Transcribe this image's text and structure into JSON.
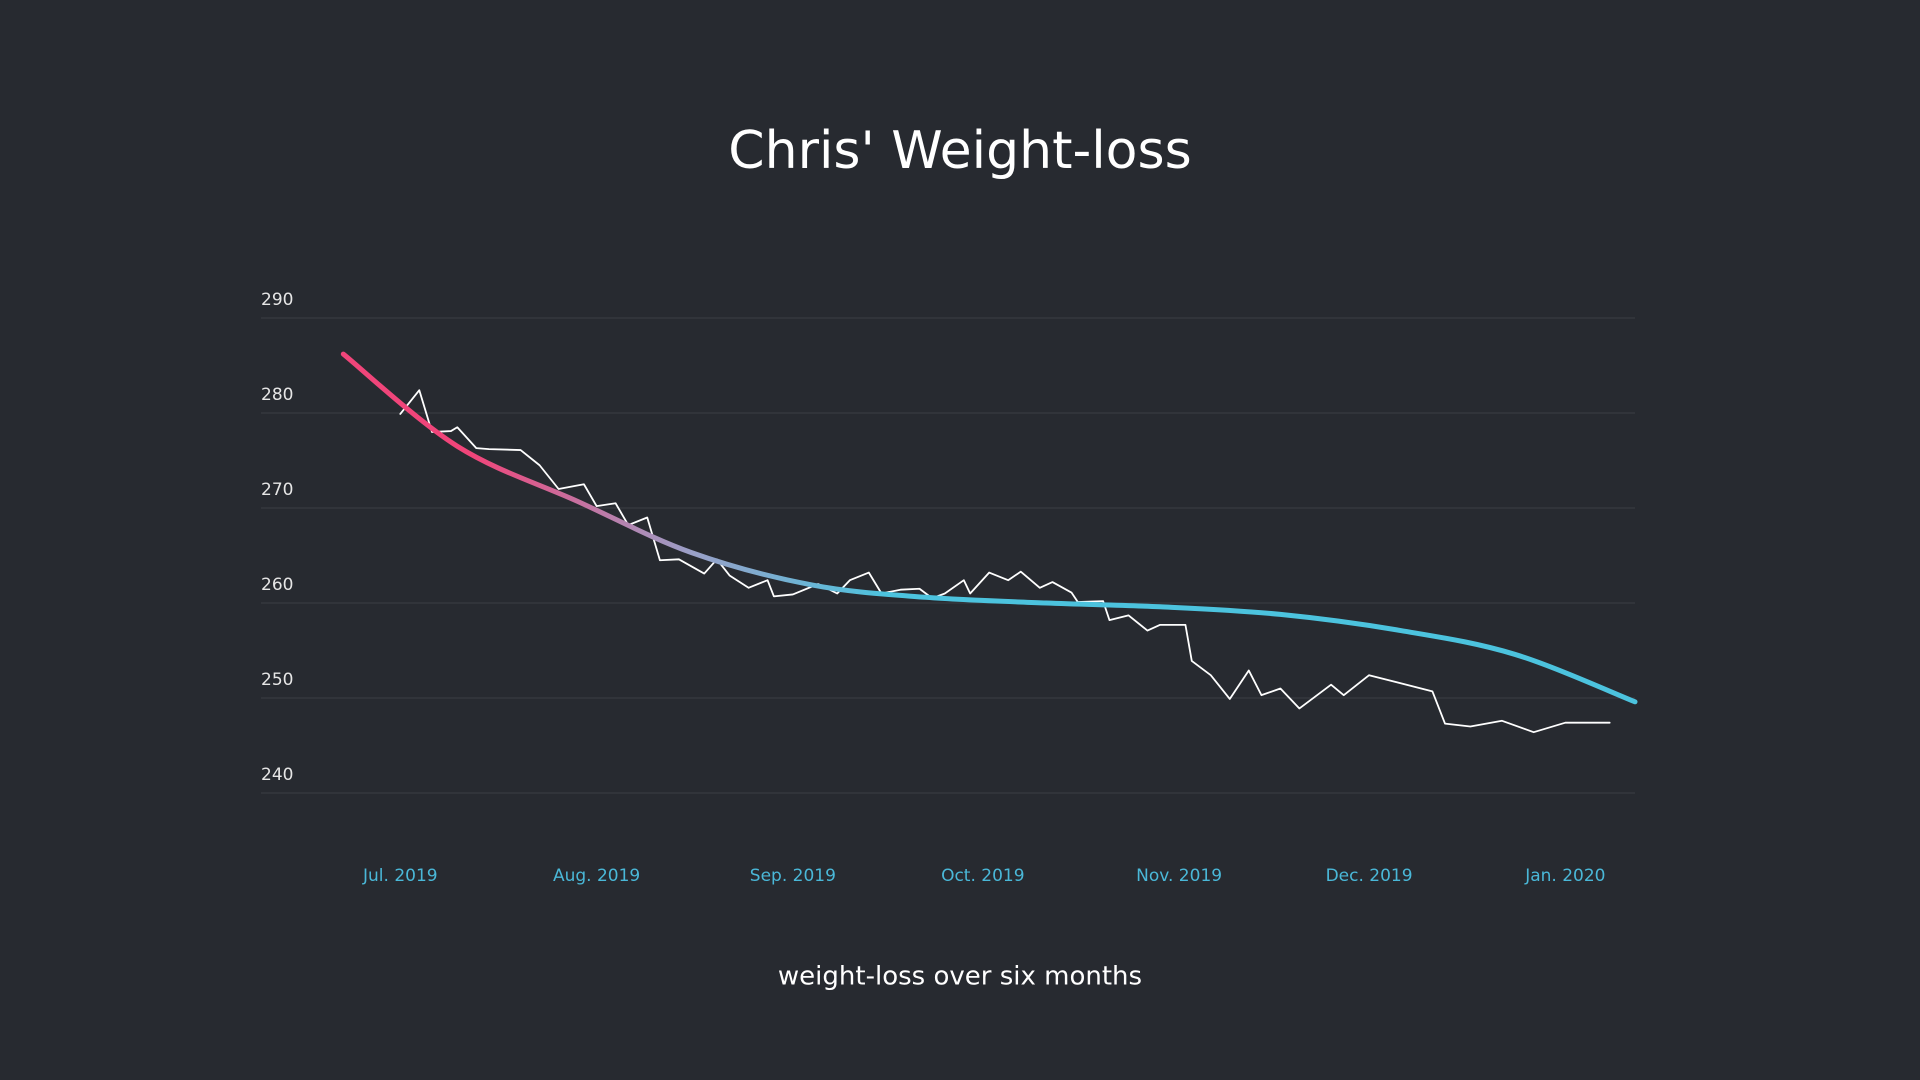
{
  "chart_data": {
    "type": "line",
    "title": "Chris' Weight-loss",
    "caption": "weight-loss over six months",
    "xlim": [
      -22,
      195
    ],
    "xticks": [
      {
        "value": 0,
        "label": "Jul. 2019"
      },
      {
        "value": 31,
        "label": "Aug. 2019"
      },
      {
        "value": 62,
        "label": "Sep. 2019"
      },
      {
        "value": 92,
        "label": "Oct. 2019"
      },
      {
        "value": 123,
        "label": "Nov. 2019"
      },
      {
        "value": 153,
        "label": "Dec. 2019"
      },
      {
        "value": 184,
        "label": "Jan. 2020"
      }
    ],
    "ylim": [
      240,
      290
    ],
    "yticks": [
      240,
      250,
      260,
      270,
      280,
      290
    ],
    "grid": true,
    "series": [
      {
        "color": "#ffffff",
        "x": [
          0,
          3,
          5,
          8,
          9,
          12,
          14,
          19,
          22,
          25,
          29,
          31,
          34,
          36,
          39,
          41,
          44,
          48,
          50,
          52,
          55,
          58,
          59,
          62,
          66,
          69,
          71,
          74,
          76,
          79,
          82,
          84,
          86,
          89,
          90,
          93,
          96,
          98,
          101,
          103,
          106,
          107,
          111,
          112,
          115,
          118,
          120,
          124,
          125,
          128,
          131,
          134,
          136,
          139,
          142,
          147,
          149,
          153,
          163,
          165,
          169,
          174,
          179,
          184,
          191
        ],
        "values": [
          279.9,
          282.4,
          278.0,
          278.1,
          278.5,
          276.3,
          276.2,
          276.1,
          274.5,
          272.0,
          272.5,
          270.2,
          270.5,
          268.2,
          269.0,
          264.5,
          264.6,
          263.1,
          264.6,
          262.9,
          261.6,
          262.4,
          260.7,
          260.9,
          262.0,
          261.0,
          262.4,
          263.2,
          261.0,
          261.4,
          261.5,
          260.5,
          261.0,
          262.4,
          261.0,
          263.2,
          262.4,
          263.3,
          261.6,
          262.2,
          261.1,
          260.1,
          260.2,
          258.2,
          258.7,
          257.1,
          257.7,
          257.7,
          253.9,
          252.4,
          249.9,
          252.9,
          250.3,
          251.0,
          248.9,
          251.4,
          250.3,
          252.4,
          250.7,
          247.3,
          247.0,
          247.6,
          246.4,
          247.4,
          247.4
        ]
      },
      {
        "color": [
          "#f0457a",
          "#9aa0c8",
          "#4cc3de"
        ],
        "smooth": true,
        "x": [
          -9,
          9,
          28,
          46,
          65,
          83,
          102,
          120,
          139,
          158,
          176,
          195
        ],
        "values": [
          286.2,
          276.5,
          270.7,
          265.3,
          261.9,
          260.6,
          260.0,
          259.6,
          258.8,
          257.1,
          254.6,
          249.6
        ]
      }
    ]
  }
}
